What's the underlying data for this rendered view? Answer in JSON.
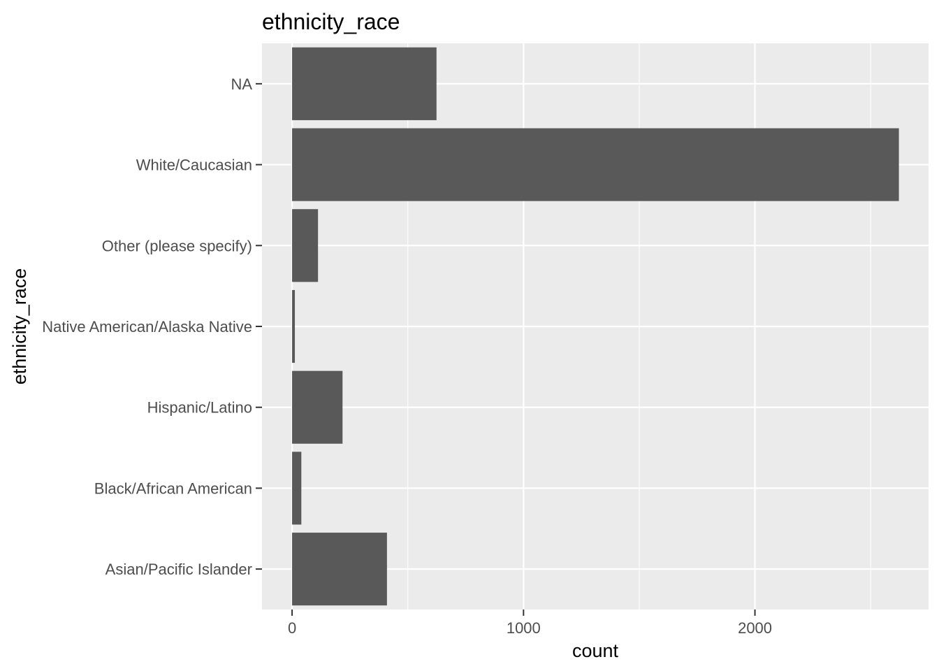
{
  "chart_data": {
    "type": "bar",
    "orientation": "horizontal",
    "title": "ethnicity_race",
    "xlabel": "count",
    "ylabel": "ethnicity_race",
    "categories": [
      "Asian/Pacific Islander",
      "Black/African American",
      "Hispanic/Latino",
      "Native American/Alaska Native",
      "Other (please specify)",
      "White/Caucasian",
      "NA"
    ],
    "values": [
      410,
      40,
      218,
      12,
      112,
      2622,
      624
    ],
    "xlim": [
      -130,
      2750
    ],
    "xticks": [
      0,
      1000,
      2000
    ],
    "xtick_labels": [
      "0",
      "1000",
      "2000"
    ],
    "grid": true,
    "colors": {
      "bar": "#595959",
      "panel_background": "#ebebeb",
      "grid": "#ffffff",
      "tick": "#333333",
      "tick_label": "#4d4d4d"
    }
  }
}
